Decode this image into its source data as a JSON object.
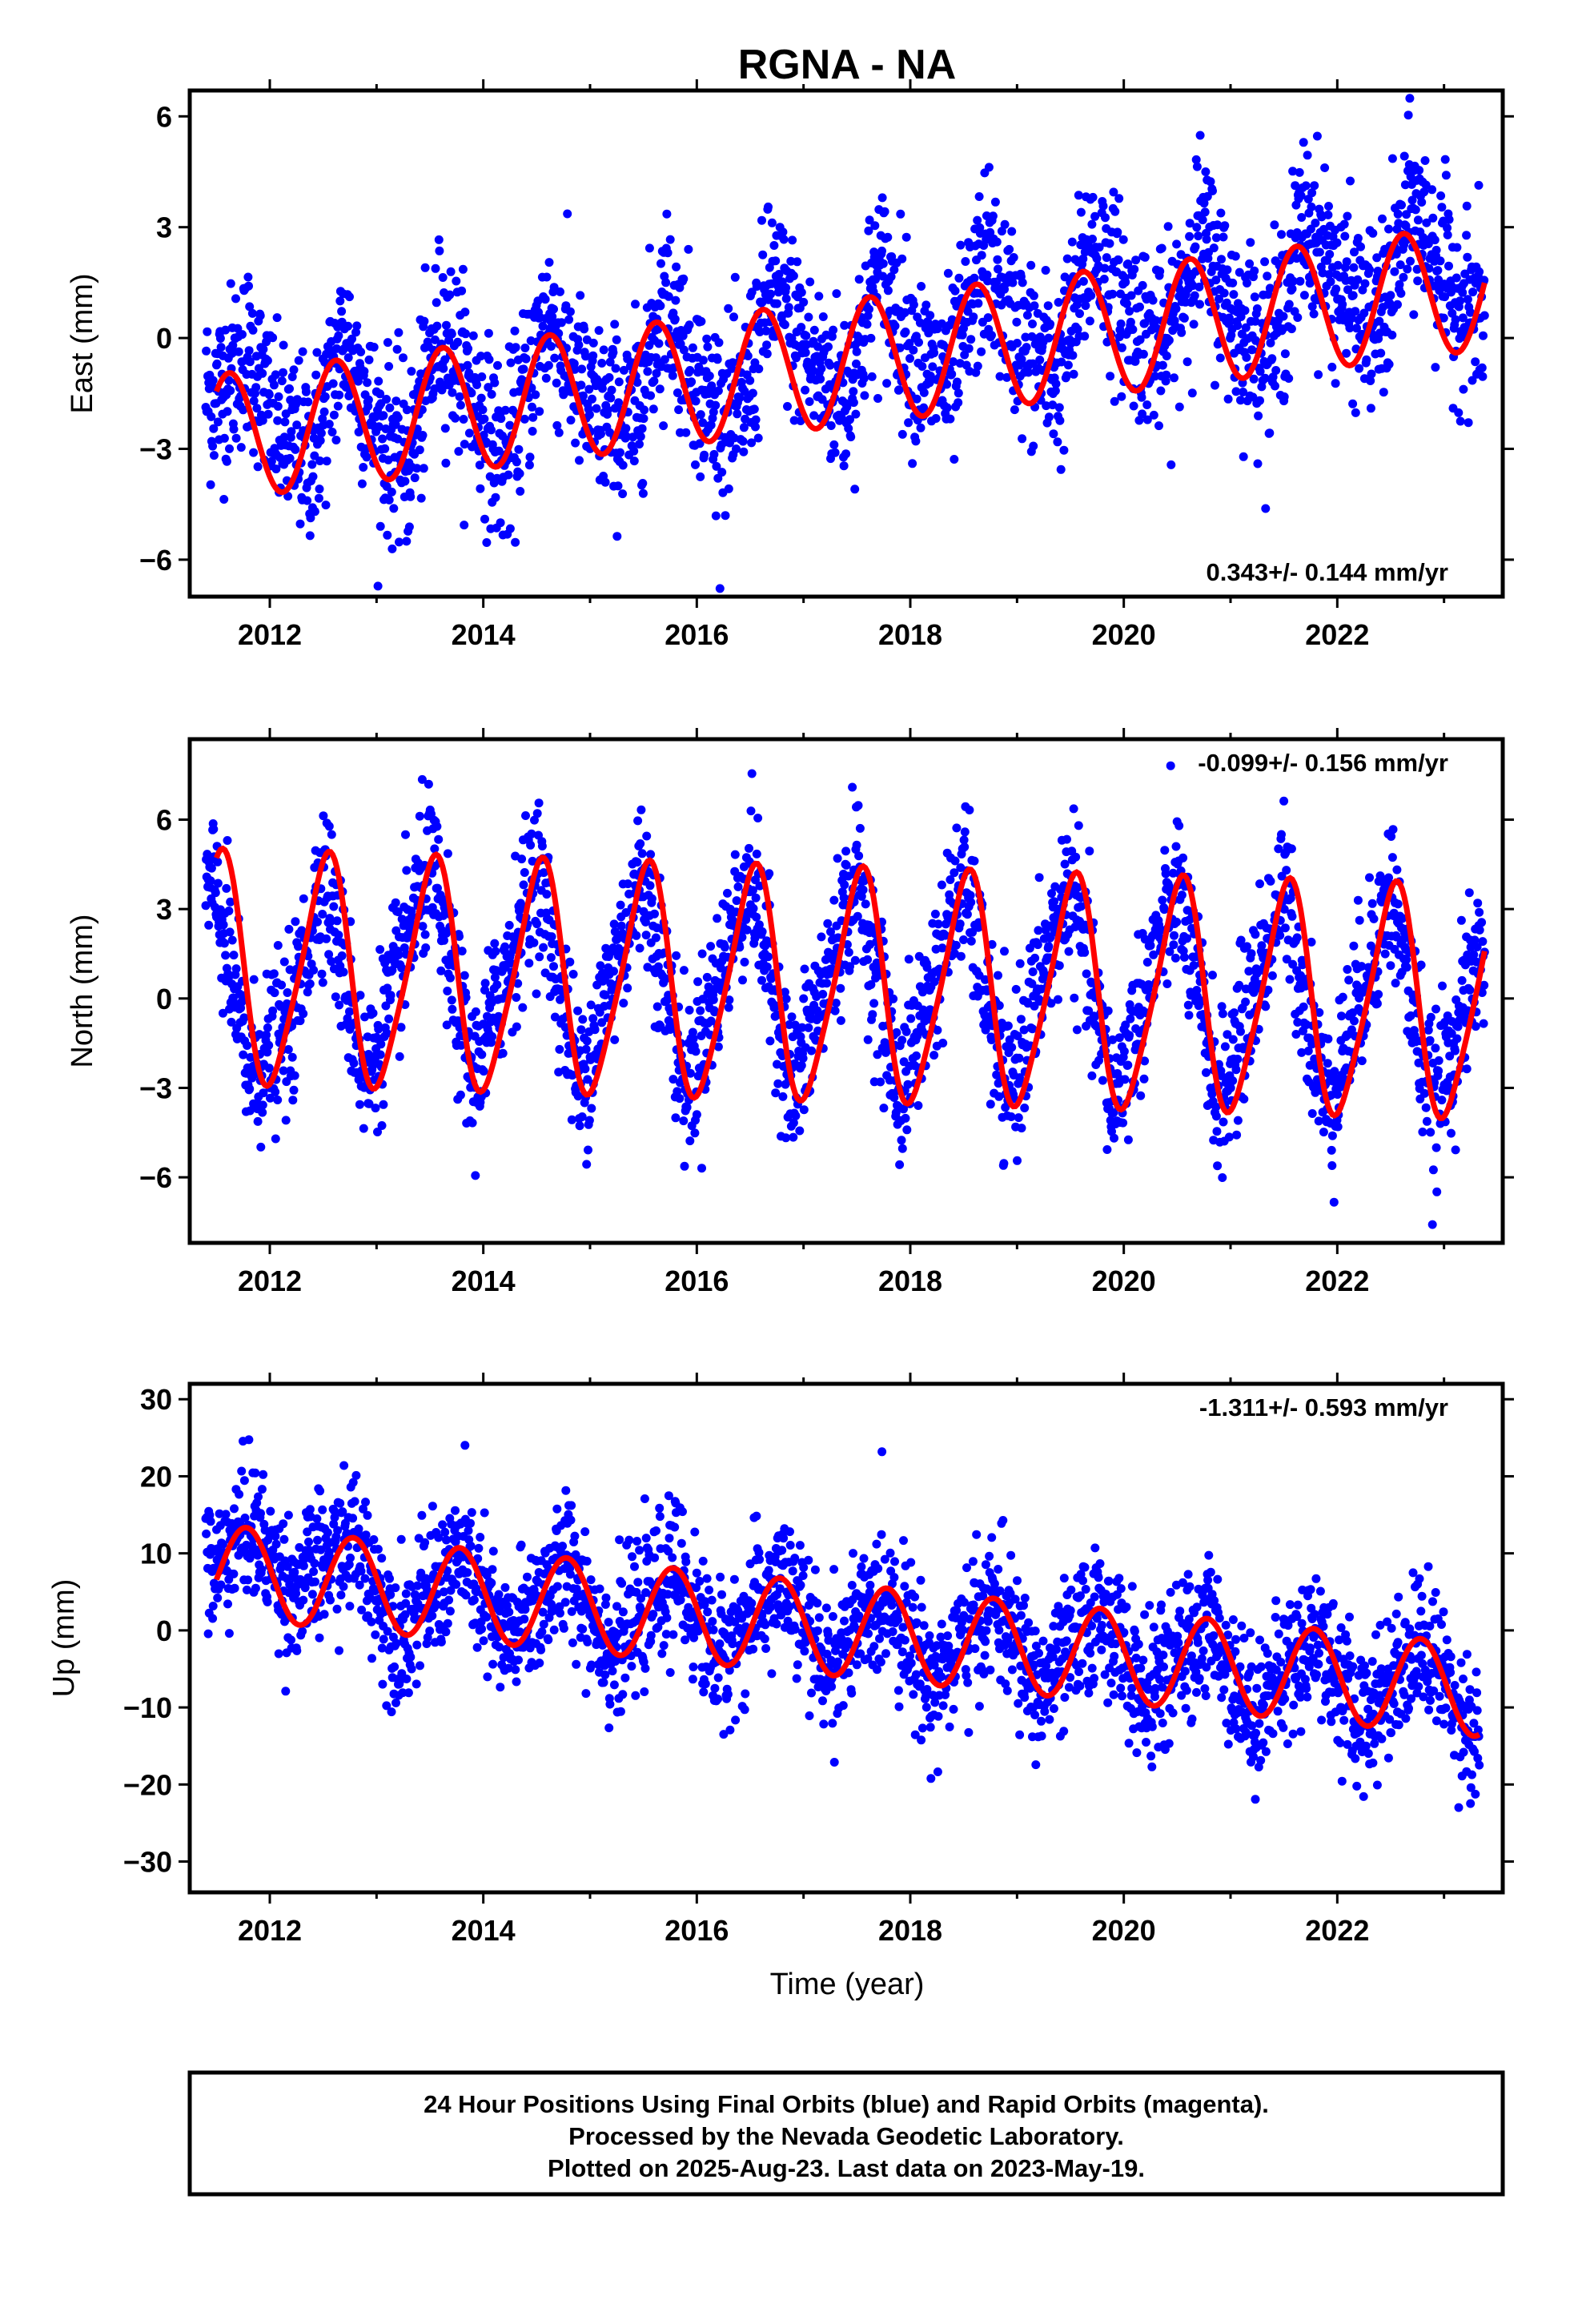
{
  "title": "RGNA - NA",
  "colors": {
    "points": "#0000ff",
    "fit": "#ff0000",
    "frame": "#000000"
  },
  "chart_data": [
    {
      "type": "scatter",
      "ylabel": "East (mm)",
      "xlim": [
        2011.25,
        2023.55
      ],
      "ylim": [
        -7.0,
        6.7
      ],
      "yticks": [
        -6,
        -3,
        0,
        3,
        6
      ],
      "ytick_labels": [
        "−6",
        "−3",
        "0",
        "3",
        "6"
      ],
      "xticks": [
        2012,
        2014,
        2016,
        2018,
        2020,
        2022
      ],
      "xtick_labels": [
        "2012",
        "2014",
        "2016",
        "2018",
        "2020",
        "2022"
      ],
      "rate_label": "0.343+/- 0.144 mm/yr",
      "rate_position": "bottom-right",
      "series": [
        {
          "kind": "points",
          "label": "Final Orbits (blue)",
          "description": "daily 24 hour positions, 2011.4 to 2023.38",
          "sampled_values": [
            [
              2011.5,
              -1.5
            ],
            [
              2011.8,
              -0.3
            ],
            [
              2012.1,
              -2.7
            ],
            [
              2012.4,
              -3.1
            ],
            [
              2012.7,
              0.1
            ],
            [
              2013.0,
              -2.5
            ],
            [
              2013.3,
              -3.4
            ],
            [
              2013.6,
              0.4
            ],
            [
              2013.9,
              -1.5
            ],
            [
              2014.2,
              -3.5
            ],
            [
              2014.6,
              0.7
            ],
            [
              2015.0,
              -2.0
            ],
            [
              2015.4,
              -2.3
            ],
            [
              2015.7,
              1.2
            ],
            [
              2016.1,
              -1.8
            ],
            [
              2016.4,
              -2.2
            ],
            [
              2016.7,
              1.5
            ],
            [
              2017.1,
              -0.8
            ],
            [
              2017.4,
              -1.6
            ],
            [
              2017.7,
              1.9
            ],
            [
              2018.1,
              -0.8
            ],
            [
              2018.4,
              -1.1
            ],
            [
              2018.7,
              2.2
            ],
            [
              2019.1,
              -0.4
            ],
            [
              2019.4,
              -1.0
            ],
            [
              2019.7,
              2.6
            ],
            [
              2020.1,
              0.4
            ],
            [
              2020.4,
              -0.3
            ],
            [
              2020.7,
              2.9
            ],
            [
              2021.1,
              0.2
            ],
            [
              2021.4,
              -0.2
            ],
            [
              2021.7,
              3.2
            ],
            [
              2022.1,
              1.0
            ],
            [
              2022.4,
              0.3
            ],
            [
              2022.7,
              3.6
            ],
            [
              2023.1,
              1.0
            ],
            [
              2023.35,
              0.6
            ]
          ],
          "scatter_amplitude": 1.2
        },
        {
          "kind": "fit",
          "label": "model fit",
          "trend": 0.343,
          "intercept_at_2017": -0.8,
          "annual_amplitude": 1.7,
          "annual_peak_phase": 0.62
        }
      ]
    },
    {
      "type": "scatter",
      "ylabel": "North (mm)",
      "xlim": [
        2011.25,
        2023.55
      ],
      "ylim": [
        -8.2,
        8.7
      ],
      "yticks": [
        -6,
        -3,
        0,
        3,
        6
      ],
      "ytick_labels": [
        "−6",
        "−3",
        "0",
        "3",
        "6"
      ],
      "xticks": [
        2012,
        2014,
        2016,
        2018,
        2020,
        2022
      ],
      "xtick_labels": [
        "2012",
        "2014",
        "2016",
        "2018",
        "2020",
        "2022"
      ],
      "rate_label": "-0.099+/- 0.156 mm/yr",
      "rate_position": "top-right",
      "series": [
        {
          "kind": "points",
          "label": "Final Orbits (blue)",
          "description": "daily 24 hour positions, 2011.4 to 2023.38",
          "sampled_values": [
            [
              2011.5,
              3.5
            ],
            [
              2011.8,
              -2.5
            ],
            [
              2012.2,
              -1.0
            ],
            [
              2012.5,
              4.5
            ],
            [
              2012.9,
              -2.8
            ],
            [
              2013.5,
              4.6
            ],
            [
              2013.9,
              -2.9
            ],
            [
              2014.5,
              4.5
            ],
            [
              2014.9,
              -3.0
            ],
            [
              2015.5,
              4.4
            ],
            [
              2015.9,
              -3.1
            ],
            [
              2016.5,
              4.3
            ],
            [
              2016.9,
              -3.2
            ],
            [
              2017.5,
              4.2
            ],
            [
              2017.9,
              -3.3
            ],
            [
              2018.5,
              4.1
            ],
            [
              2018.9,
              -3.4
            ],
            [
              2019.5,
              4.0
            ],
            [
              2019.9,
              -3.5
            ],
            [
              2020.5,
              3.9
            ],
            [
              2020.9,
              -3.6
            ],
            [
              2021.5,
              3.8
            ],
            [
              2021.9,
              -3.7
            ],
            [
              2022.5,
              3.7
            ],
            [
              2022.9,
              -3.8
            ],
            [
              2023.35,
              1.7
            ]
          ],
          "scatter_amplitude": 1.3
        },
        {
          "kind": "fit",
          "label": "model fit",
          "trend": -0.099,
          "intercept_at_2017": 0.4,
          "annual_amplitude": 3.8,
          "semiannual_amplitude": 0.6
        }
      ]
    },
    {
      "type": "scatter",
      "ylabel": "Up (mm)",
      "xlabel": "Time (year)",
      "xlim": [
        2011.25,
        2023.55
      ],
      "ylim": [
        -34.0,
        32.0
      ],
      "yticks": [
        -30,
        -20,
        -10,
        0,
        10,
        20,
        30
      ],
      "ytick_labels": [
        "−30",
        "−20",
        "−10",
        "0",
        "10",
        "20",
        "30"
      ],
      "xticks": [
        2012,
        2014,
        2016,
        2018,
        2020,
        2022
      ],
      "xtick_labels": [
        "2012",
        "2014",
        "2016",
        "2018",
        "2020",
        "2022"
      ],
      "rate_label": "-1.311+/- 0.593 mm/yr",
      "rate_position": "top-right",
      "series": [
        {
          "kind": "points",
          "label": "Final Orbits (blue)",
          "description": "daily 24 hour positions, 2011.4 to 2023.38",
          "sampled_values": [
            [
              2011.5,
              8
            ],
            [
              2011.8,
              14
            ],
            [
              2012.2,
              5
            ],
            [
              2012.8,
              12
            ],
            [
              2013.2,
              -1
            ],
            [
              2013.8,
              10
            ],
            [
              2014.2,
              -2
            ],
            [
              2014.8,
              9
            ],
            [
              2015.2,
              -3
            ],
            [
              2015.8,
              8
            ],
            [
              2016.2,
              -4
            ],
            [
              2016.8,
              7
            ],
            [
              2017.2,
              -5
            ],
            [
              2017.8,
              5
            ],
            [
              2018.2,
              -7
            ],
            [
              2018.8,
              4
            ],
            [
              2019.2,
              -8
            ],
            [
              2019.8,
              3
            ],
            [
              2020.2,
              -9
            ],
            [
              2020.8,
              1
            ],
            [
              2021.2,
              -11
            ],
            [
              2021.8,
              0
            ],
            [
              2022.2,
              -12
            ],
            [
              2022.8,
              -1
            ],
            [
              2023.3,
              -14
            ]
          ],
          "scatter_amplitude": 4.5
        },
        {
          "kind": "fit",
          "label": "model fit",
          "trend": -1.311,
          "intercept_at_2017": 0.5,
          "annual_amplitude": 6.0,
          "annual_peak_phase": 0.78
        }
      ]
    }
  ],
  "footer": {
    "line1": "24 Hour Positions Using Final Orbits (blue) and Rapid Orbits (magenta).",
    "line2": "Processed by the Nevada Geodetic Laboratory.",
    "line3": "Plotted on 2025-Aug-23. Last data on 2023-May-19."
  }
}
